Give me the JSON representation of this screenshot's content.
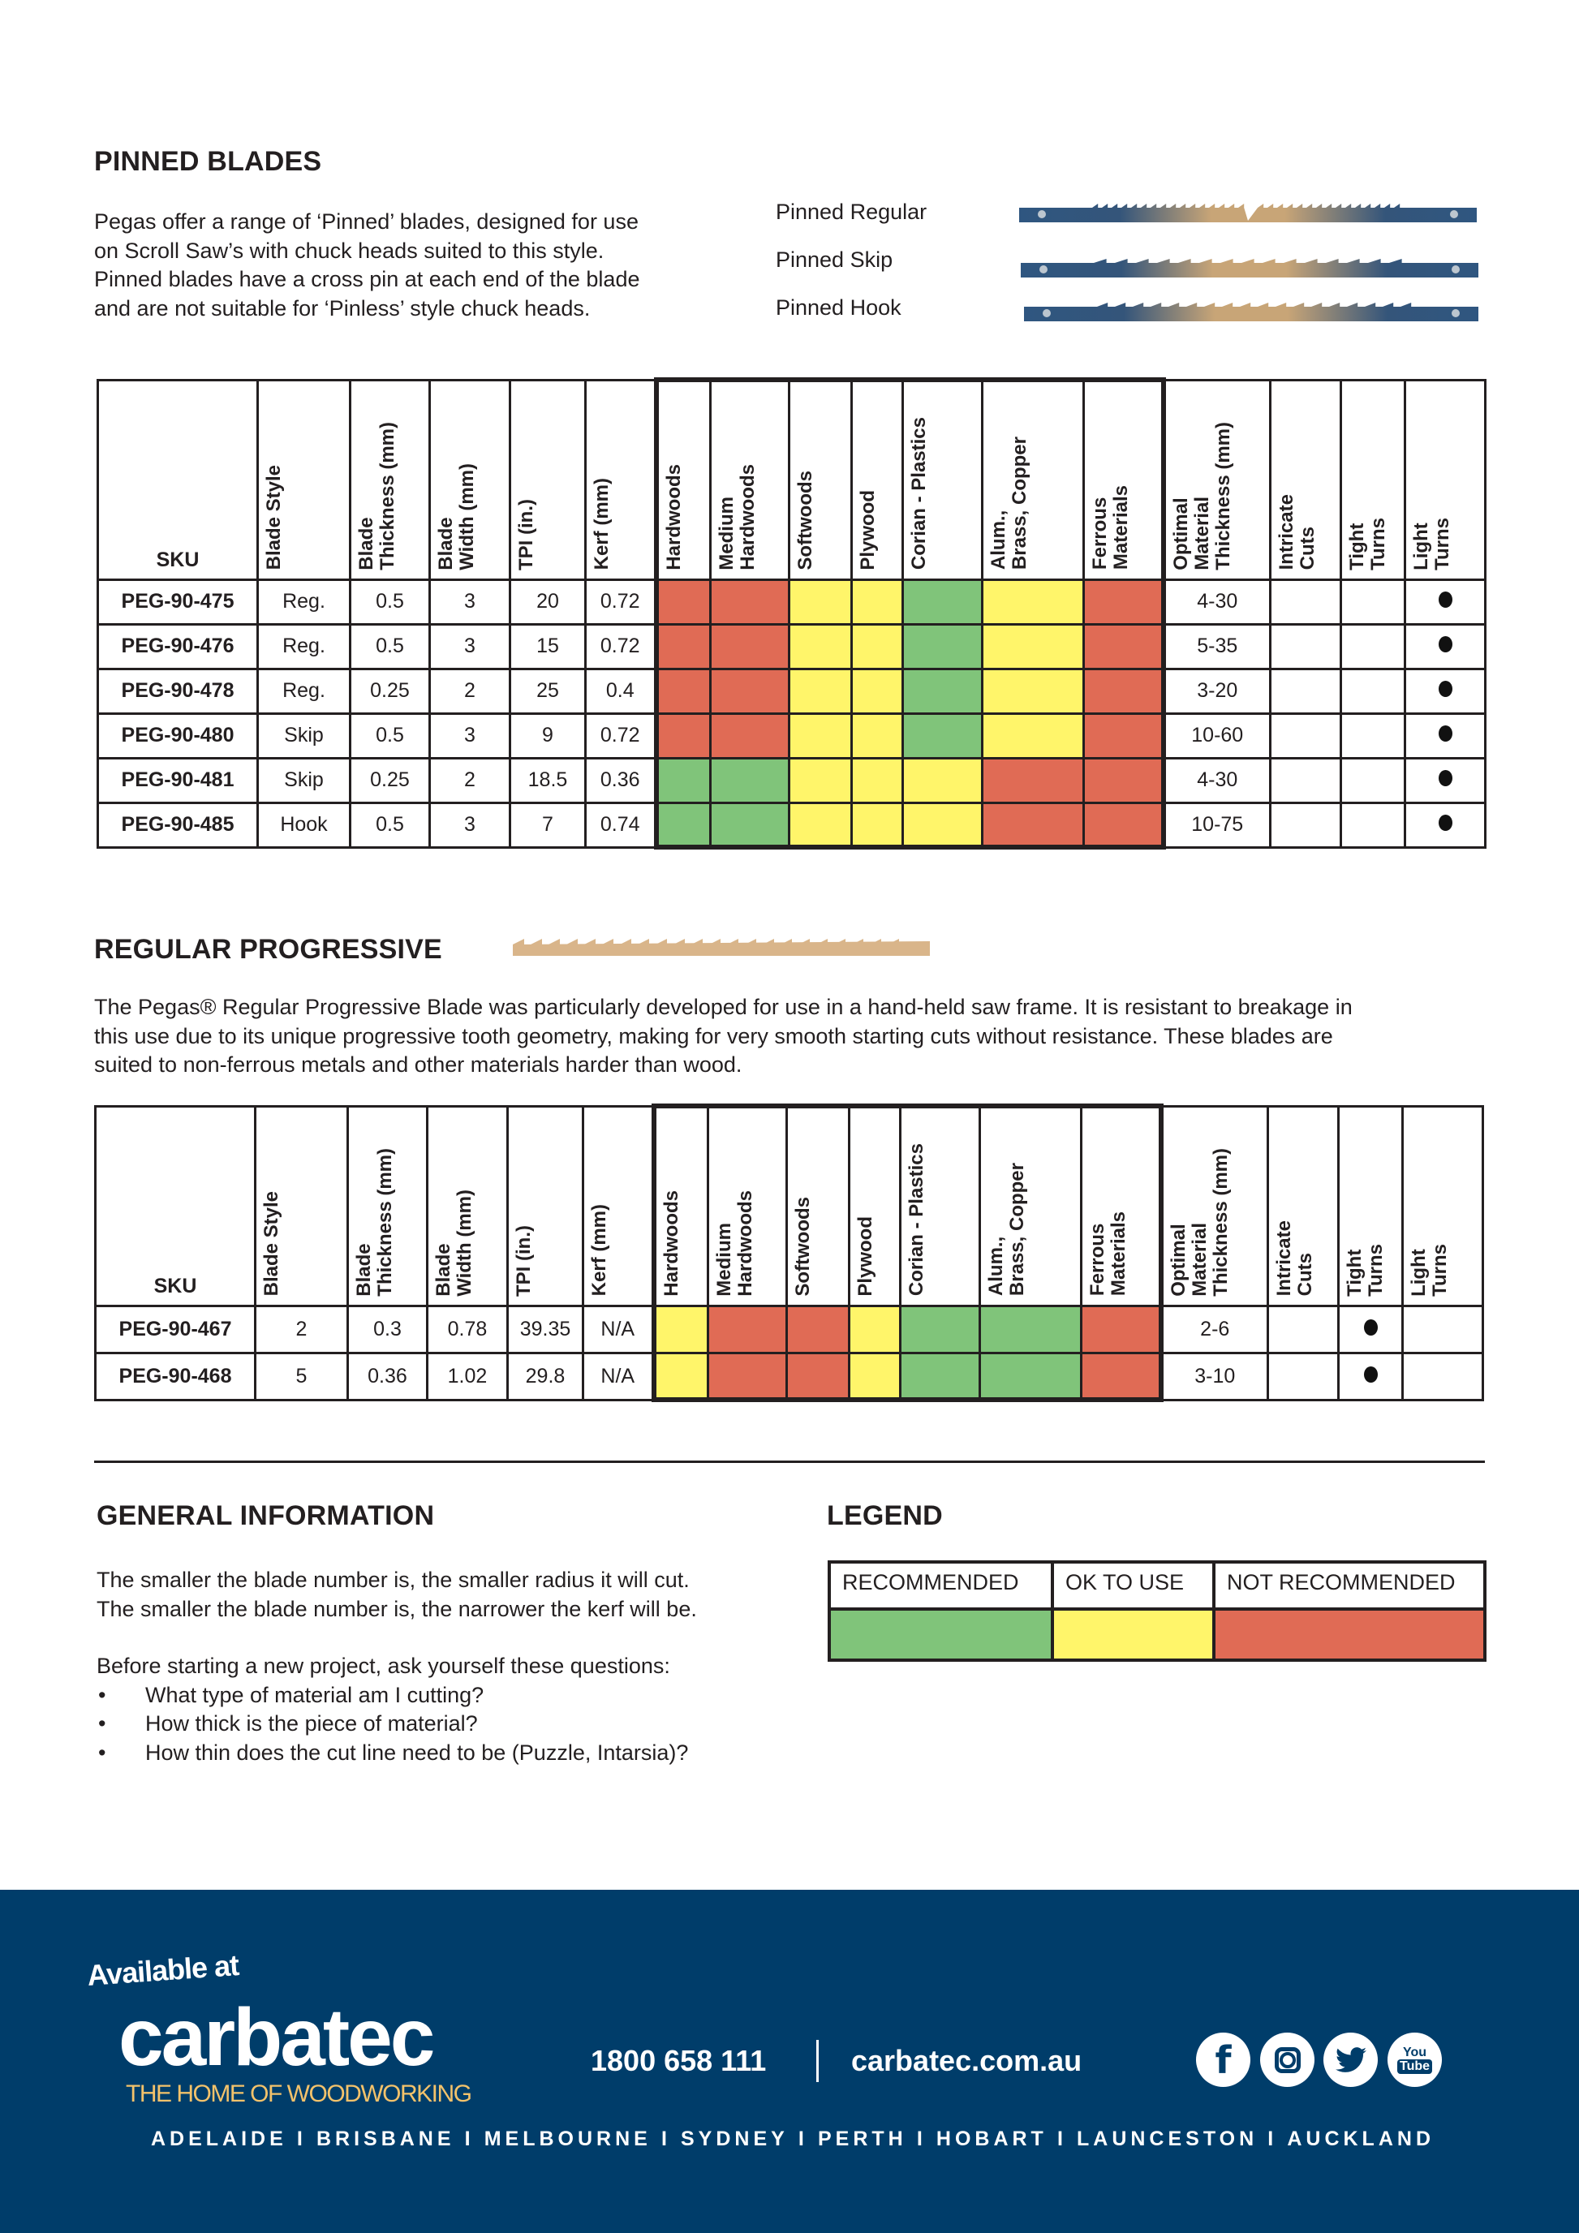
{
  "pinned": {
    "title": "PINNED BLADES",
    "lines": [
      "Pegas offer a range of ‘Pinned’ blades, designed for use",
      "on Scroll Saw’s with chuck heads suited to this style.",
      "Pinned blades have a cross pin at each end of the blade",
      "and are not suitable for ‘Pinless’ style chuck heads."
    ],
    "blades": [
      "Pinned Regular",
      "Pinned Skip",
      "Pinned Hook"
    ]
  },
  "progressive": {
    "title": "REGULAR PROGRESSIVE",
    "lines": [
      "The Pegas® Regular Progressive Blade was particularly developed for use in a hand-held saw frame. It is resistant to breakage in",
      "this use due to its unique progressive tooth geometry, making for very smooth starting cuts without resistance. These blades are",
      "suited to non-ferrous metals and other materials harder than wood."
    ]
  },
  "rating_colors": {
    "R": "#80c47a",
    "O": "#fff56a",
    "N": "#e06b55"
  },
  "tables": [
    {
      "headers": [
        "SKU",
        "Blade Style",
        "Blade\nThickness (mm)",
        "Blade\nWidth (mm)",
        "TPI (in.)",
        "Kerf (mm)",
        "Hardwoods",
        "Medium\nHardwoods",
        "Softwoods",
        "Plywood",
        "Corian  - Plastics",
        "Alum.,\nBrass, Copper",
        "Ferrous\nMaterials",
        "Optimal\nMaterial\nThickness (mm)",
        "Intricate\nCuts",
        "Tight\nTurns",
        "Light\nTurns"
      ],
      "rows": [
        {
          "sku": "PEG-90-475",
          "style": "Reg.",
          "thickness": "0.5",
          "width": "3",
          "tpi": "20",
          "kerf": "0.72",
          "ratings": [
            "N",
            "N",
            "O",
            "O",
            "R",
            "O",
            "N"
          ],
          "optimal": "4-30",
          "intricate": false,
          "tight": false,
          "light": true
        },
        {
          "sku": "PEG-90-476",
          "style": "Reg.",
          "thickness": "0.5",
          "width": "3",
          "tpi": "15",
          "kerf": "0.72",
          "ratings": [
            "N",
            "N",
            "O",
            "O",
            "R",
            "O",
            "N"
          ],
          "optimal": "5-35",
          "intricate": false,
          "tight": false,
          "light": true
        },
        {
          "sku": "PEG-90-478",
          "style": "Reg.",
          "thickness": "0.25",
          "width": "2",
          "tpi": "25",
          "kerf": "0.4",
          "ratings": [
            "N",
            "N",
            "O",
            "O",
            "R",
            "O",
            "N"
          ],
          "optimal": "3-20",
          "intricate": false,
          "tight": false,
          "light": true
        },
        {
          "sku": "PEG-90-480",
          "style": "Skip",
          "thickness": "0.5",
          "width": "3",
          "tpi": "9",
          "kerf": "0.72",
          "ratings": [
            "N",
            "N",
            "O",
            "O",
            "R",
            "O",
            "N"
          ],
          "optimal": "10-60",
          "intricate": false,
          "tight": false,
          "light": true
        },
        {
          "sku": "PEG-90-481",
          "style": "Skip",
          "thickness": "0.25",
          "width": "2",
          "tpi": "18.5",
          "kerf": "0.36",
          "ratings": [
            "R",
            "R",
            "O",
            "O",
            "O",
            "N",
            "N"
          ],
          "optimal": "4-30",
          "intricate": false,
          "tight": false,
          "light": true
        },
        {
          "sku": "PEG-90-485",
          "style": "Hook",
          "thickness": "0.5",
          "width": "3",
          "tpi": "7",
          "kerf": "0.74",
          "ratings": [
            "R",
            "R",
            "O",
            "O",
            "O",
            "N",
            "N"
          ],
          "optimal": "10-75",
          "intricate": false,
          "tight": false,
          "light": true
        }
      ]
    },
    {
      "headers": [
        "SKU",
        "Blade Style",
        "Blade\nThickness (mm)",
        "Blade\nWidth (mm)",
        "TPI (in.)",
        "Kerf (mm)",
        "Hardwoods",
        "Medium\nHardwoods",
        "Softwoods",
        "Plywood",
        "Corian  - Plastics",
        "Alum.,\nBrass, Copper",
        "Ferrous\nMaterials",
        "Optimal\nMaterial\nThickness (mm)",
        "Intricate\nCuts",
        "Tight\nTurns",
        "Light\nTurns"
      ],
      "rows": [
        {
          "sku": "PEG-90-467",
          "style": "2",
          "thickness": "0.3",
          "width": "0.78",
          "tpi": "39.35",
          "kerf": "N/A",
          "ratings": [
            "O",
            "N",
            "N",
            "O",
            "R",
            "R",
            "N"
          ],
          "optimal": "2-6",
          "intricate": false,
          "tight": true,
          "light": false
        },
        {
          "sku": "PEG-90-468",
          "style": "5",
          "thickness": "0.36",
          "width": "1.02",
          "tpi": "29.8",
          "kerf": "N/A",
          "ratings": [
            "O",
            "N",
            "N",
            "O",
            "R",
            "R",
            "N"
          ],
          "optimal": "3-10",
          "intricate": false,
          "tight": true,
          "light": false
        }
      ]
    }
  ],
  "general": {
    "title": "GENERAL INFORMATION",
    "lines": [
      "The smaller the blade number is, the smaller radius it will cut.",
      "The smaller the blade number is, the narrower the kerf will be."
    ],
    "question_intro": "Before starting a new project, ask yourself these questions:",
    "bullet": "•",
    "questions": [
      "What type of material am I cutting?",
      "How thick is the piece of material?",
      "How thin does the cut line need to be (Puzzle, Intarsia)?"
    ]
  },
  "legend": {
    "title": "LEGEND",
    "items": [
      {
        "label": "RECOMMENDED",
        "color": "#80c47a"
      },
      {
        "label": "OK TO USE",
        "color": "#fff56a"
      },
      {
        "label": "NOT RECOMMENDED",
        "color": "#e06b55"
      }
    ]
  },
  "footer": {
    "available": "Available at",
    "brand": "carbatec",
    "tagline": "THE HOME OF WOODWORKING",
    "phone": "1800 658 111",
    "website": "carbatec.com.au",
    "social_icons": [
      "facebook-icon",
      "instagram-icon",
      "twitter-icon",
      "youtube-icon"
    ],
    "cities": [
      "ADELAIDE",
      "BRISBANE",
      "MELBOURNE",
      "SYDNEY",
      "PERTH",
      "HOBART",
      "LAUNCESTON",
      "AUCKLAND"
    ],
    "background": "#003d6a",
    "tagline_color": "#f3c26b"
  }
}
